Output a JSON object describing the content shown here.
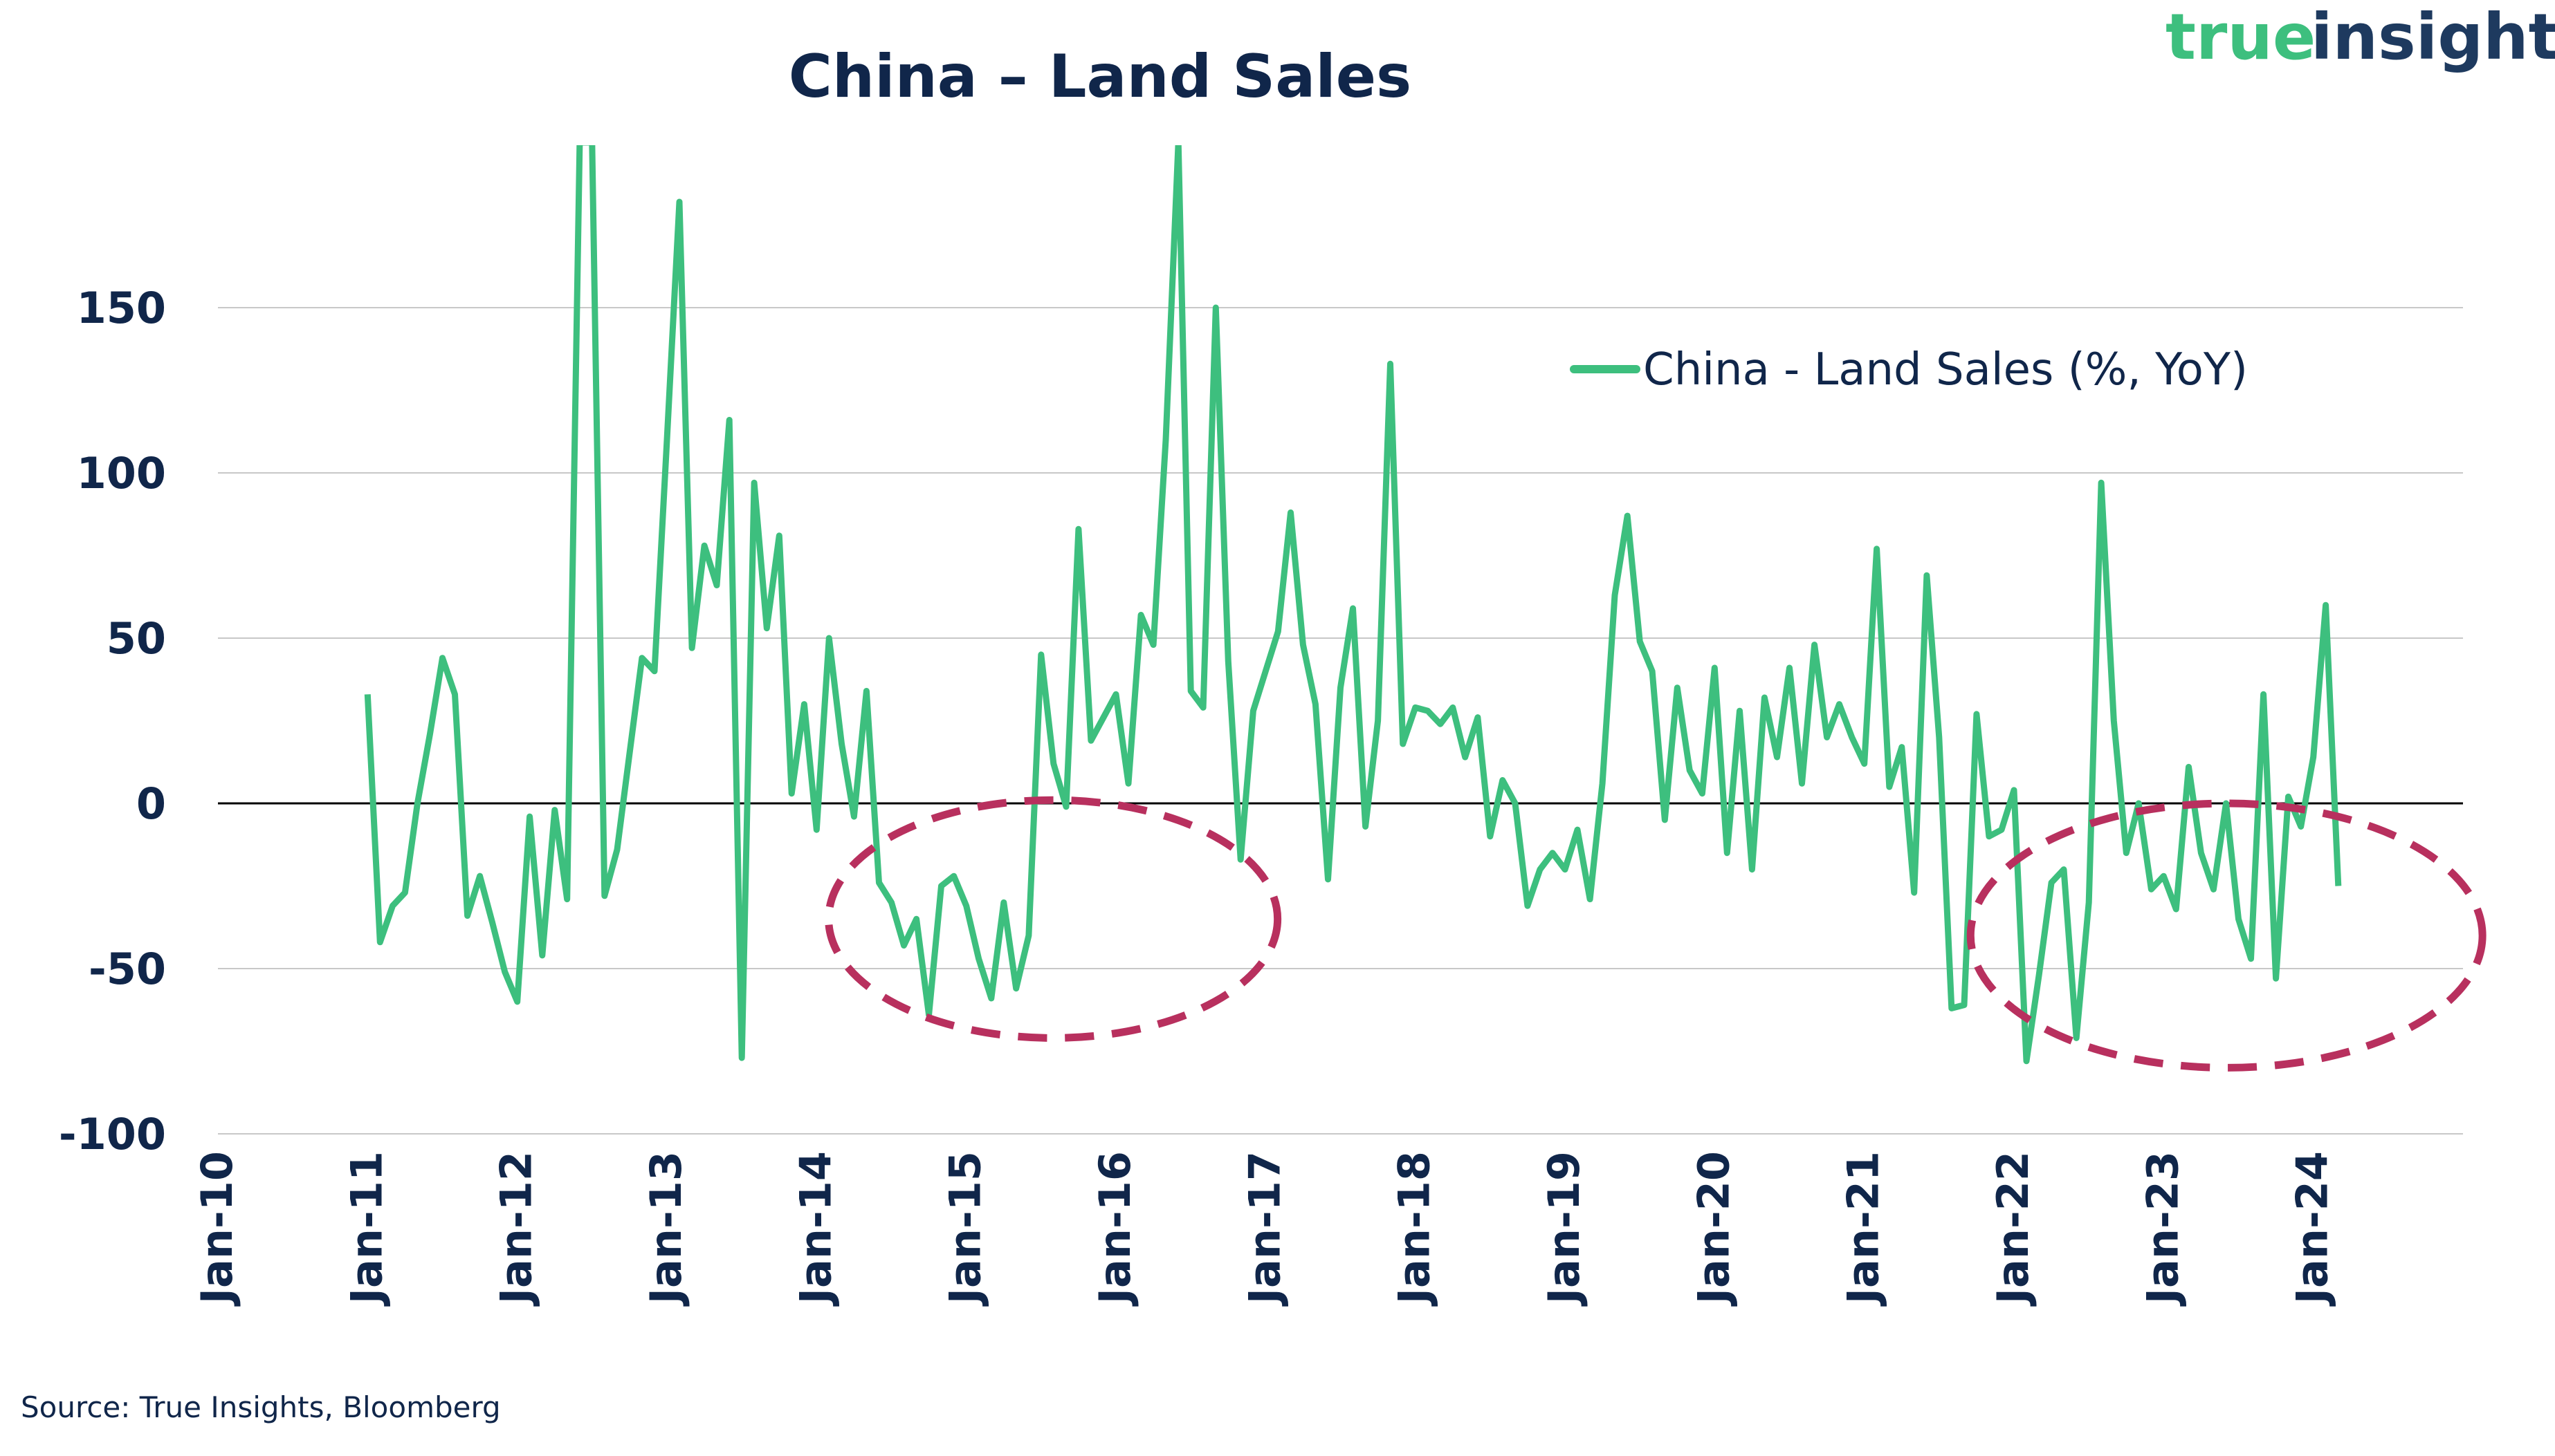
{
  "logo": {
    "part1": "true",
    "part2": "insights"
  },
  "source": "Source: True Insights, Bloomberg",
  "colors": {
    "series": "#3dbf7e",
    "highlight": "#b8305e",
    "text": "#10264a",
    "grid": "#c8c8c8",
    "zero": "#000000"
  },
  "chart_data": {
    "type": "line",
    "title": "China – Land Sales",
    "legend": {
      "label": "China - Land Sales (%, YoY)",
      "position": "top-right"
    },
    "xlabel": "",
    "ylabel": "",
    "ylim": [
      -100,
      150
    ],
    "yticks": [
      150,
      100,
      50,
      0,
      -50,
      -100
    ],
    "ytick_labels": [
      "150",
      "100",
      "50",
      "0",
      "-50",
      "-100"
    ],
    "xlim": [
      2010.0,
      2025.0
    ],
    "xticks": [
      {
        "value": 2010.0,
        "label": "Jan-10"
      },
      {
        "value": 2011.0,
        "label": "Jan-11"
      },
      {
        "value": 2012.0,
        "label": "Jan-12"
      },
      {
        "value": 2013.0,
        "label": "Jan-13"
      },
      {
        "value": 2014.0,
        "label": "Jan-14"
      },
      {
        "value": 2015.0,
        "label": "Jan-15"
      },
      {
        "value": 2016.0,
        "label": "Jan-16"
      },
      {
        "value": 2017.0,
        "label": "Jan-17"
      },
      {
        "value": 2018.0,
        "label": "Jan-18"
      },
      {
        "value": 2019.0,
        "label": "Jan-19"
      },
      {
        "value": 2020.0,
        "label": "Jan-20"
      },
      {
        "value": 2021.0,
        "label": "Jan-21"
      },
      {
        "value": 2022.0,
        "label": "Jan-22"
      },
      {
        "value": 2023.0,
        "label": "Jan-23"
      },
      {
        "value": 2024.0,
        "label": "Jan-24"
      }
    ],
    "series": [
      {
        "name": "China - Land Sales (%, YoY)",
        "x": [
          2011.0,
          2011.083,
          2011.167,
          2011.25,
          2011.333,
          2011.417,
          2011.5,
          2011.583,
          2011.667,
          2011.75,
          2011.833,
          2011.917,
          2012.0,
          2012.083,
          2012.167,
          2012.25,
          2012.333,
          2012.417,
          2012.5,
          2012.583,
          2012.667,
          2012.75,
          2012.833,
          2012.917,
          2013.0,
          2013.083,
          2013.167,
          2013.25,
          2013.333,
          2013.417,
          2013.5,
          2013.583,
          2013.667,
          2013.75,
          2013.833,
          2013.917,
          2014.0,
          2014.083,
          2014.167,
          2014.25,
          2014.333,
          2014.417,
          2014.5,
          2014.583,
          2014.667,
          2014.75,
          2014.833,
          2014.917,
          2015.0,
          2015.083,
          2015.167,
          2015.25,
          2015.333,
          2015.417,
          2015.5,
          2015.583,
          2015.667,
          2015.75,
          2015.833,
          2015.917,
          2016.0,
          2016.083,
          2016.167,
          2016.25,
          2016.333,
          2016.417,
          2016.5,
          2016.583,
          2016.667,
          2016.75,
          2016.833,
          2016.917,
          2017.0,
          2017.083,
          2017.167,
          2017.25,
          2017.333,
          2017.417,
          2017.5,
          2017.583,
          2017.667,
          2017.75,
          2017.833,
          2017.917,
          2018.0,
          2018.083,
          2018.167,
          2018.25,
          2018.333,
          2018.417,
          2018.5,
          2018.583,
          2018.667,
          2018.75,
          2018.833,
          2018.917,
          2019.0,
          2019.083,
          2019.167,
          2019.25,
          2019.333,
          2019.417,
          2019.5,
          2019.583,
          2019.667,
          2019.75,
          2019.833,
          2019.917,
          2020.0,
          2020.083,
          2020.167,
          2020.25,
          2020.333,
          2020.417,
          2020.5,
          2020.583,
          2020.667,
          2020.75,
          2020.833,
          2020.917,
          2021.0,
          2021.083,
          2021.167,
          2021.25,
          2021.333,
          2021.417,
          2021.5,
          2021.583,
          2021.667,
          2021.75,
          2021.833,
          2021.917,
          2022.0,
          2022.083,
          2022.167,
          2022.25,
          2022.333,
          2022.417,
          2022.5,
          2022.583,
          2022.667,
          2022.75,
          2022.833,
          2022.917,
          2023.0,
          2023.083,
          2023.167,
          2023.25,
          2023.333,
          2023.417,
          2023.5,
          2023.583,
          2023.667,
          2023.75,
          2023.833,
          2023.917,
          2024.0,
          2024.083,
          2024.167
        ],
        "values": [
          33,
          -42,
          -31,
          -27,
          0,
          21,
          44,
          33,
          -34,
          -22,
          -36,
          -51,
          -60,
          -4,
          -46,
          -2,
          -29,
          200,
          200,
          -28,
          -14,
          15,
          44,
          40,
          110,
          182,
          47,
          78,
          66,
          116,
          -77,
          97,
          53,
          81,
          3,
          30,
          -8,
          50,
          18,
          -4,
          34,
          -24,
          -30,
          -43,
          -35,
          -64,
          -25,
          -22,
          -31,
          -47,
          -59,
          -30,
          -56,
          -40,
          45,
          12,
          -1,
          83,
          19,
          26,
          33,
          6,
          57,
          48,
          110,
          200,
          34,
          29,
          150,
          43,
          -17,
          28,
          40,
          52,
          88,
          48,
          30,
          -23,
          35,
          59,
          -7,
          25,
          133,
          18,
          29,
          28,
          24,
          29,
          14,
          26,
          -10,
          7,
          0,
          -31,
          -20,
          -15,
          -20,
          -8,
          -29,
          6,
          63,
          87,
          49,
          40,
          -5,
          35,
          10,
          3,
          41,
          -15,
          28,
          -20,
          32,
          14,
          41,
          6,
          48,
          20,
          30,
          20,
          12,
          77,
          5,
          17,
          -27,
          69,
          20,
          -62,
          -61,
          27,
          -10,
          -8,
          4,
          -78,
          -52,
          -24,
          -20,
          -71,
          -30,
          97,
          25,
          -15,
          0,
          -26,
          -22,
          -32,
          11,
          -15,
          -26,
          0,
          -35,
          -47,
          33,
          -53,
          2,
          -7,
          14,
          60,
          -25
        ]
      }
    ],
    "annotations": [
      {
        "type": "ellipse",
        "style": "dashed",
        "cx": 2015.58,
        "cy": -35,
        "rx": 1.5,
        "ry": 36
      },
      {
        "type": "ellipse",
        "style": "dashed",
        "cx": 2023.42,
        "cy": -40,
        "rx": 1.71,
        "ry": 40
      }
    ]
  }
}
